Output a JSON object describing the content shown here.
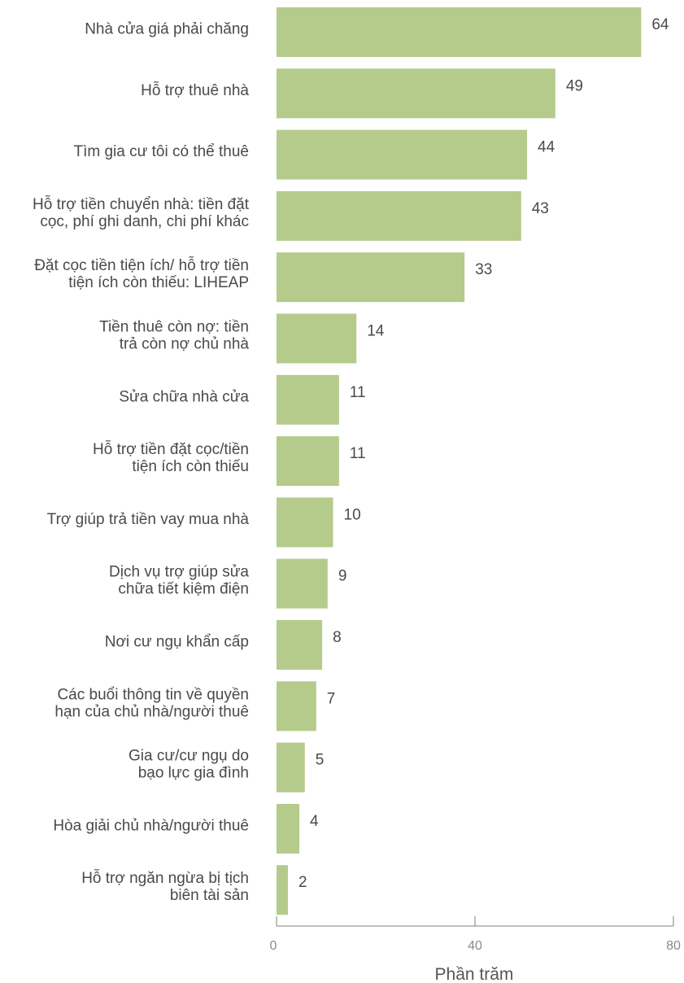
{
  "chart_data": {
    "type": "bar",
    "orientation": "horizontal",
    "categories": [
      [
        "Nhà cửa giá phải chăng"
      ],
      [
        "Hỗ trợ thuê nhà"
      ],
      [
        "Tìm gia cư tôi có thể thuê"
      ],
      [
        "Hỗ trợ tiền chuyển nhà: tiền đặt",
        "cọc, phí ghi danh, chi phí khác"
      ],
      [
        "Đặt cọc tiền tiện ích/ hỗ trợ tiền",
        "tiện ích còn thiếu: LIHEAP"
      ],
      [
        "Tiền thuê còn nợ: tiền",
        "trả còn nợ chủ nhà"
      ],
      [
        "Sửa chữa nhà cửa"
      ],
      [
        "Hỗ trợ tiền đặt cọc/tiền",
        "tiện ích còn thiếu"
      ],
      [
        "Trợ giúp trả tiền vay mua nhà"
      ],
      [
        "Dịch vụ trợ giúp sửa",
        "chữa tiết kiệm điện"
      ],
      [
        "Nơi cư ngụ khẩn cấp"
      ],
      [
        "Các buổi thông tin về quyền",
        "hạn của chủ nhà/người thuê"
      ],
      [
        "Gia cư/cư ngụ do",
        "bạo lực gia đình"
      ],
      [
        "Hòa giải chủ nhà/người thuê"
      ],
      [
        "Hỗ trợ ngăn ngừa bị tịch",
        "biên tài sản"
      ]
    ],
    "values": [
      64,
      49,
      44,
      43,
      33,
      14,
      11,
      11,
      10,
      9,
      8,
      7,
      5,
      4,
      2
    ],
    "bar_lengths": [
      73.5,
      56.2,
      50.5,
      49.3,
      37.9,
      16.1,
      12.6,
      12.6,
      11.4,
      10.3,
      9.2,
      8.0,
      5.7,
      4.6,
      2.3
    ],
    "xlim": [
      0,
      80
    ],
    "xticks": [
      0,
      40,
      80
    ],
    "xlabel": "Phần trăm",
    "ylabel": "",
    "title": "",
    "grid": false,
    "legend": "none",
    "bar_color": "#b5cb8b",
    "axis_color": "#7f7f7f"
  }
}
